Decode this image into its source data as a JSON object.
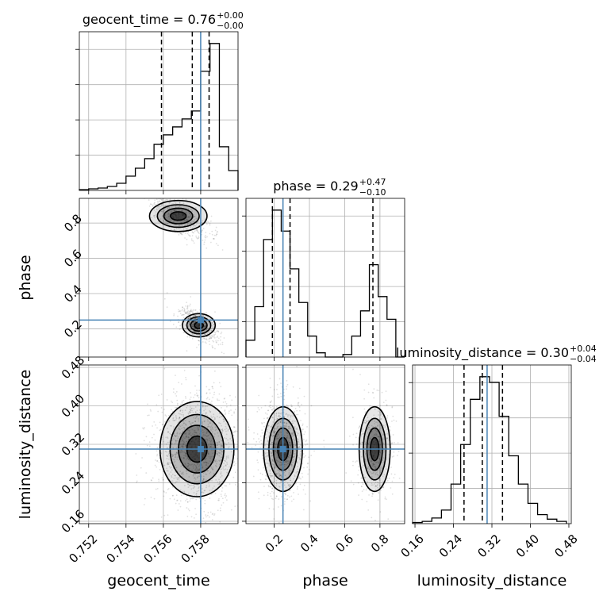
{
  "chart_data": {
    "type": "corner",
    "parameters": [
      "geocent_time",
      "phase",
      "luminosity_distance"
    ],
    "titles": {
      "geocent_time": {
        "name": "geocent_time",
        "median": "0.76",
        "plus": "+0.00",
        "minus": "−0.00"
      },
      "phase": {
        "name": "phase",
        "median": "0.29",
        "plus": "+0.47",
        "minus": "−0.10"
      },
      "luminosity_distance": {
        "name": "luminosity_distance",
        "median": "0.30",
        "plus": "+0.04",
        "minus": "−0.04"
      }
    },
    "ranges": {
      "geocent_time": [
        0.7515,
        0.76
      ],
      "phase": [
        0.04,
        0.94
      ],
      "luminosity_distance": [
        0.155,
        0.485
      ]
    },
    "ticks": {
      "geocent_time": [
        "0.752",
        "0.754",
        "0.756",
        "0.758"
      ],
      "phase": [
        "0.2",
        "0.4",
        "0.6",
        "0.8"
      ],
      "luminosity_distance": [
        "0.16",
        "0.24",
        "0.32",
        "0.40",
        "0.48"
      ]
    },
    "truths": {
      "geocent_time": 0.758,
      "phase": 0.25,
      "luminosity_distance": 0.31
    },
    "quantiles": {
      "geocent_time": [
        0.7559,
        0.75755,
        0.75845
      ],
      "phase": [
        0.19,
        0.29,
        0.76
      ],
      "luminosity_distance": [
        0.262,
        0.3,
        0.342
      ]
    },
    "histograms": {
      "geocent_time": {
        "bin_edges": [
          0.7515,
          0.752,
          0.7525,
          0.753,
          0.7535,
          0.754,
          0.7545,
          0.755,
          0.7555,
          0.756,
          0.7565,
          0.757,
          0.7575,
          0.758,
          0.7585,
          0.759,
          0.7595,
          0.76
        ],
        "counts": [
          1,
          2,
          3,
          5,
          9,
          18,
          28,
          40,
          58,
          70,
          80,
          90,
          100,
          150,
          185,
          55,
          25
        ]
      },
      "phase": {
        "bin_edges": [
          0.04,
          0.09,
          0.14,
          0.19,
          0.24,
          0.29,
          0.34,
          0.39,
          0.44,
          0.49,
          0.54,
          0.59,
          0.64,
          0.69,
          0.74,
          0.79,
          0.84,
          0.89,
          0.94
        ],
        "counts": [
          20,
          60,
          140,
          175,
          150,
          105,
          65,
          25,
          5,
          0,
          0,
          3,
          25,
          55,
          110,
          72,
          45,
          0
        ]
      },
      "luminosity_distance": {
        "bin_edges": [
          0.155,
          0.175,
          0.195,
          0.215,
          0.235,
          0.255,
          0.275,
          0.295,
          0.315,
          0.335,
          0.355,
          0.375,
          0.395,
          0.415,
          0.435,
          0.455,
          0.475
        ],
        "counts": [
          1,
          2,
          5,
          12,
          35,
          70,
          110,
          130,
          125,
          95,
          60,
          35,
          18,
          8,
          4,
          2
        ]
      }
    },
    "contour_levels": [
      "0.5σ",
      "1σ",
      "1.5σ",
      "2σ"
    ],
    "grid": true,
    "colors": {
      "truth": "#4682b4",
      "hist": "#000000",
      "contour": "#000000"
    }
  }
}
